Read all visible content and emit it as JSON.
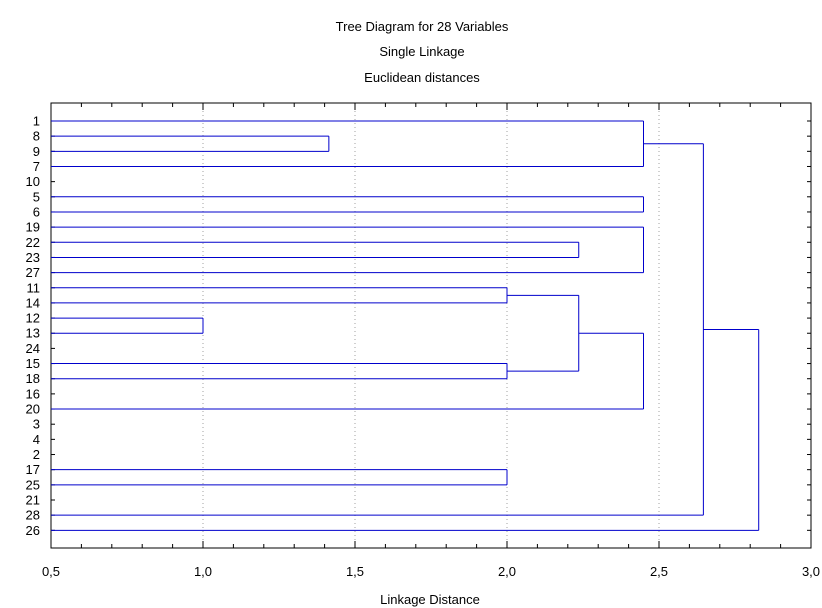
{
  "chart_data": {
    "type": "dendrogram",
    "title": "Tree Diagram for 28  Variables",
    "subtitle_1": "Single Linkage",
    "subtitle_2": "Euclidean distances",
    "xlabel": "Linkage Distance",
    "xlim": [
      0.5,
      3.0
    ],
    "xticks": [
      "0,5",
      "1,0",
      "1,5",
      "2,0",
      "2,5",
      "3,0"
    ],
    "xtick_values": [
      0.5,
      1.0,
      1.5,
      2.0,
      2.5,
      3.0
    ],
    "grid": true,
    "leaves": [
      "1",
      "8",
      "9",
      "7",
      "10",
      "5",
      "6",
      "19",
      "22",
      "23",
      "27",
      "11",
      "14",
      "12",
      "13",
      "24",
      "15",
      "18",
      "16",
      "20",
      "3",
      "4",
      "2",
      "17",
      "25",
      "21",
      "28",
      "26"
    ],
    "merges": [
      {
        "left": "12",
        "right": "13",
        "distance": 1.0
      },
      {
        "left": "8",
        "right": "9",
        "distance": 1.414
      },
      {
        "left": "11",
        "right": "14",
        "distance": 2.0
      },
      {
        "left": "15",
        "right": "18",
        "distance": 2.0
      },
      {
        "left": "17",
        "right": "25",
        "distance": 2.0
      },
      {
        "left": "22",
        "right": "23",
        "distance": 2.236
      },
      {
        "left": "11",
        "right": "15",
        "distance": 2.236
      },
      {
        "left": "1",
        "right": "7",
        "distance": 2.449
      },
      {
        "left": "5",
        "right": "6",
        "distance": 2.449
      },
      {
        "left": "19",
        "right": "27",
        "distance": 2.449
      },
      {
        "left": "11",
        "right": "20",
        "distance": 2.449
      },
      {
        "left": "1",
        "right": "28",
        "distance": 2.646
      },
      {
        "left": "1",
        "right": "26",
        "distance": 2.828
      }
    ]
  }
}
